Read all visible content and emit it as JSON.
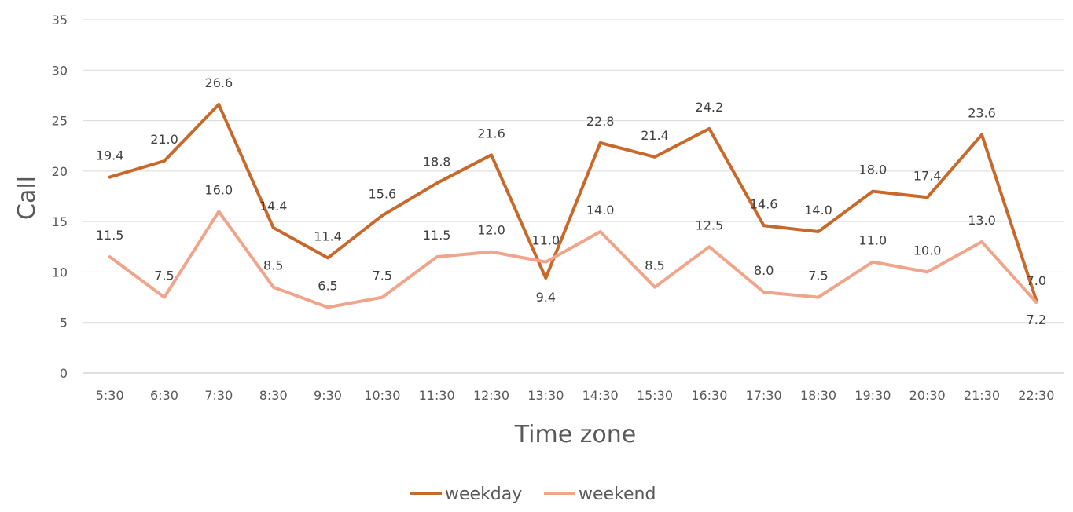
{
  "chart_data": {
    "type": "line",
    "title": "",
    "xlabel": "Time zone",
    "ylabel": "Call",
    "ylim": [
      0,
      35
    ],
    "yticks": [
      0,
      5,
      10,
      15,
      20,
      25,
      30,
      35
    ],
    "grid": true,
    "legend": "bottom",
    "categories": [
      "5:30",
      "6:30",
      "7:30",
      "8:30",
      "9:30",
      "10:30",
      "11:30",
      "12:30",
      "13:30",
      "14:30",
      "15:30",
      "16:30",
      "17:30",
      "18:30",
      "19:30",
      "20:30",
      "21:30",
      "22:30"
    ],
    "series": [
      {
        "name": "weekday",
        "color": "#C8692B",
        "values": [
          19.4,
          21.0,
          26.6,
          14.4,
          11.4,
          15.6,
          18.8,
          21.6,
          9.4,
          22.8,
          21.4,
          24.2,
          14.6,
          14.0,
          18.0,
          17.4,
          23.6,
          7.2
        ],
        "labels": [
          "19.4",
          "21.0",
          "26.6",
          "14.4",
          "11.4",
          "15.6",
          "18.8",
          "21.6",
          "9.4",
          "22.8",
          "21.4",
          "24.2",
          "14.6",
          "14.0",
          "18.0",
          "17.4",
          "23.6",
          "7.2"
        ]
      },
      {
        "name": "weekend",
        "color": "#F0A58A",
        "values": [
          11.5,
          7.5,
          16.0,
          8.5,
          6.5,
          7.5,
          11.5,
          12.0,
          11.0,
          14.0,
          8.5,
          12.5,
          8.0,
          7.5,
          11.0,
          10.0,
          13.0,
          7.0
        ],
        "labels": [
          "11.5",
          "7.5",
          "16.0",
          "8.5",
          "6.5",
          "7.5",
          "11.5",
          "12.0",
          "11.0",
          "14.0",
          "8.5",
          "12.5",
          "8.0",
          "7.5",
          "11.0",
          "10.0",
          "13.0",
          "7.0"
        ]
      }
    ]
  }
}
